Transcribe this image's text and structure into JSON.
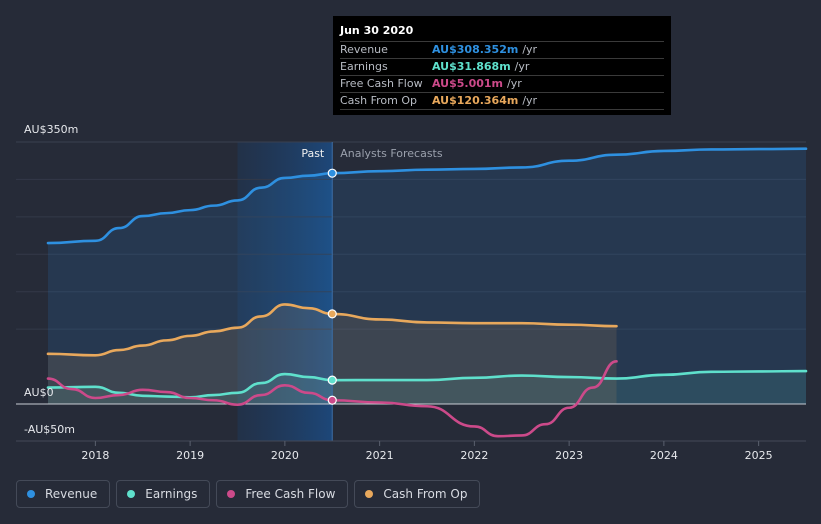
{
  "chart_data": {
    "type": "line",
    "y_labels": [
      "AU$350m",
      "AU$0",
      "-AU$50m"
    ],
    "ylim": [
      -50,
      350
    ],
    "xlim": [
      2017.5,
      2025.5
    ],
    "x_ticks": [
      "2018",
      "2019",
      "2020",
      "2021",
      "2022",
      "2023",
      "2024",
      "2025"
    ],
    "divider_x": 2020.5,
    "past_label": "Past",
    "forecast_label": "Analysts Forecasts",
    "series": [
      {
        "name": "Revenue",
        "color": "#2e90e0",
        "points": [
          [
            2017.5,
            215
          ],
          [
            2018.0,
            218
          ],
          [
            2018.25,
            235
          ],
          [
            2018.5,
            251
          ],
          [
            2018.75,
            255
          ],
          [
            2019.0,
            259
          ],
          [
            2019.25,
            265
          ],
          [
            2019.5,
            272
          ],
          [
            2019.75,
            289
          ],
          [
            2020.0,
            302
          ],
          [
            2020.25,
            305
          ],
          [
            2020.5,
            308.35
          ],
          [
            2021.0,
            311
          ],
          [
            2021.5,
            313
          ],
          [
            2022.0,
            314
          ],
          [
            2022.5,
            316
          ],
          [
            2023.0,
            325
          ],
          [
            2023.5,
            333
          ],
          [
            2024.0,
            338
          ],
          [
            2024.5,
            340
          ],
          [
            2025.0,
            340.5
          ],
          [
            2025.5,
            341
          ]
        ]
      },
      {
        "name": "Earnings",
        "color": "#5fe0cc",
        "points": [
          [
            2017.5,
            22
          ],
          [
            2018.0,
            23
          ],
          [
            2018.25,
            15
          ],
          [
            2018.5,
            11
          ],
          [
            2018.75,
            10
          ],
          [
            2019.0,
            9
          ],
          [
            2019.25,
            12
          ],
          [
            2019.5,
            15
          ],
          [
            2019.75,
            28
          ],
          [
            2020.0,
            40
          ],
          [
            2020.25,
            36
          ],
          [
            2020.5,
            31.87
          ],
          [
            2021.0,
            32
          ],
          [
            2021.5,
            32
          ],
          [
            2022.0,
            35
          ],
          [
            2022.5,
            38
          ],
          [
            2023.0,
            36
          ],
          [
            2023.5,
            34
          ],
          [
            2024.0,
            39
          ],
          [
            2024.5,
            43
          ],
          [
            2025.0,
            43.5
          ],
          [
            2025.5,
            44
          ]
        ]
      },
      {
        "name": "Free Cash Flow",
        "color": "#cc4a8a",
        "points": [
          [
            2017.5,
            34
          ],
          [
            2017.75,
            20
          ],
          [
            2018.0,
            8
          ],
          [
            2018.25,
            12
          ],
          [
            2018.5,
            19
          ],
          [
            2018.75,
            16
          ],
          [
            2019.0,
            8
          ],
          [
            2019.25,
            5
          ],
          [
            2019.5,
            -1
          ],
          [
            2019.75,
            12
          ],
          [
            2020.0,
            25
          ],
          [
            2020.25,
            15
          ],
          [
            2020.5,
            5
          ],
          [
            2021.0,
            2
          ],
          [
            2021.5,
            -3
          ],
          [
            2022.0,
            -30
          ],
          [
            2022.25,
            -43
          ],
          [
            2022.5,
            -42
          ],
          [
            2022.75,
            -27
          ],
          [
            2023.0,
            -5
          ],
          [
            2023.25,
            22
          ],
          [
            2023.5,
            57
          ]
        ]
      },
      {
        "name": "Cash From Op",
        "color": "#e8a85c",
        "points": [
          [
            2017.5,
            67
          ],
          [
            2018.0,
            65
          ],
          [
            2018.25,
            72
          ],
          [
            2018.5,
            78
          ],
          [
            2018.75,
            85
          ],
          [
            2019.0,
            91
          ],
          [
            2019.25,
            97
          ],
          [
            2019.5,
            102
          ],
          [
            2019.75,
            117
          ],
          [
            2020.0,
            133
          ],
          [
            2020.25,
            128
          ],
          [
            2020.5,
            120.36
          ],
          [
            2021.0,
            113
          ],
          [
            2021.5,
            109
          ],
          [
            2022.0,
            108
          ],
          [
            2022.5,
            108
          ],
          [
            2023.0,
            106
          ],
          [
            2023.5,
            104
          ]
        ]
      }
    ]
  },
  "tooltip": {
    "date": "Jun 30 2020",
    "rows": [
      {
        "label": "Revenue",
        "value": "AU$308.352m",
        "unit": "/yr",
        "color": "#2e90e0"
      },
      {
        "label": "Earnings",
        "value": "AU$31.868m",
        "unit": "/yr",
        "color": "#5fe0cc"
      },
      {
        "label": "Free Cash Flow",
        "value": "AU$5.001m",
        "unit": "/yr",
        "color": "#cc4a8a"
      },
      {
        "label": "Cash From Op",
        "value": "AU$120.364m",
        "unit": "/yr",
        "color": "#e8a85c"
      }
    ]
  },
  "legend": [
    {
      "label": "Revenue",
      "color": "#2e90e0"
    },
    {
      "label": "Earnings",
      "color": "#5fe0cc"
    },
    {
      "label": "Free Cash Flow",
      "color": "#cc4a8a"
    },
    {
      "label": "Cash From Op",
      "color": "#e8a85c"
    }
  ]
}
